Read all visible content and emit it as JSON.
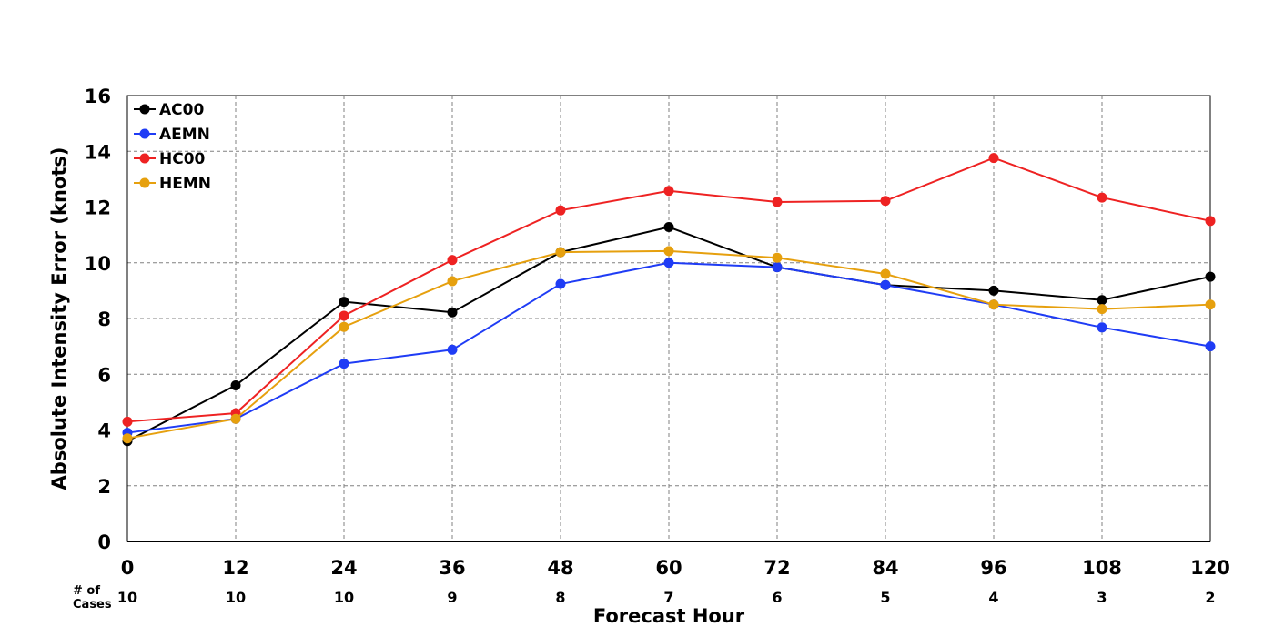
{
  "chart_data": {
    "type": "line",
    "title": "",
    "xlabel": "Forecast Hour",
    "ylabel": "Absolute Intensity Error (knots)",
    "x": [
      0,
      12,
      24,
      36,
      48,
      60,
      72,
      84,
      96,
      108,
      120
    ],
    "xlim": [
      0,
      120
    ],
    "ylim": [
      0,
      16
    ],
    "yticks": [
      0,
      2,
      4,
      6,
      8,
      10,
      12,
      14,
      16
    ],
    "grid": true,
    "legend_position": "top-left",
    "cases_label": [
      "# of",
      "Cases"
    ],
    "cases": [
      10,
      10,
      10,
      9,
      8,
      7,
      6,
      5,
      4,
      3,
      2
    ],
    "series": [
      {
        "name": "AC00",
        "color": "#000000",
        "values": [
          3.6,
          5.6,
          8.6,
          8.22,
          10.38,
          11.28,
          9.84,
          9.2,
          9.0,
          8.66,
          9.5
        ]
      },
      {
        "name": "AEMN",
        "color": "#1f3cf5",
        "values": [
          3.9,
          4.4,
          6.38,
          6.88,
          9.24,
          10.0,
          9.84,
          9.2,
          8.5,
          7.68,
          7.0
        ]
      },
      {
        "name": "HC00",
        "color": "#ee2222",
        "values": [
          4.3,
          4.6,
          8.1,
          10.1,
          11.88,
          12.58,
          12.18,
          12.22,
          13.76,
          12.34,
          11.5
        ]
      },
      {
        "name": "HEMN",
        "color": "#e6a00e",
        "values": [
          3.7,
          4.4,
          7.7,
          9.34,
          10.38,
          10.42,
          10.18,
          9.6,
          8.5,
          8.34,
          8.5
        ]
      }
    ]
  }
}
